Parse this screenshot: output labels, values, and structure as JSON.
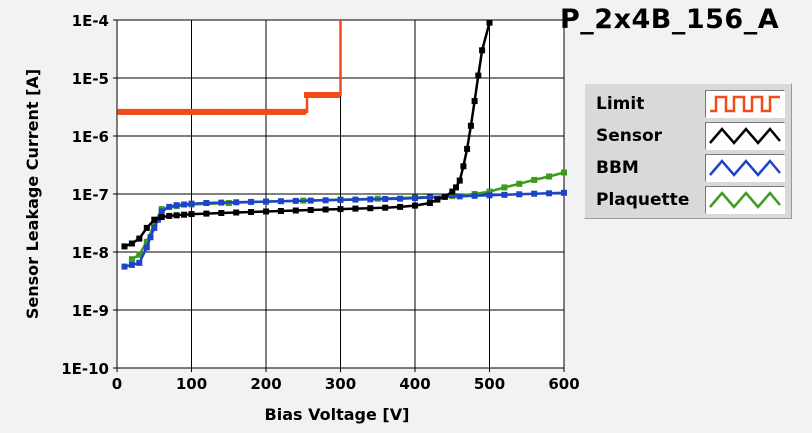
{
  "title": "P_2x4B_156_A",
  "legend": [
    {
      "label": "Limit",
      "color": "#f04c1a",
      "pattern": "square-wave"
    },
    {
      "label": "Sensor",
      "color": "#000000",
      "pattern": "triangle-wave"
    },
    {
      "label": "BBM",
      "color": "#1d44c8",
      "pattern": "triangle-wave"
    },
    {
      "label": "Plaquette",
      "color": "#3c9a1c",
      "pattern": "triangle-wave"
    }
  ],
  "chart_data": {
    "type": "line",
    "xlabel": "Bias Voltage [V]",
    "ylabel": "Sensor Leakage Current [A]",
    "xlim": [
      0,
      600
    ],
    "ylim": [
      1e-10,
      0.0001
    ],
    "yscale": "log",
    "grid": true,
    "legend_position": "right",
    "x_ticks": [
      0,
      100,
      200,
      300,
      400,
      500,
      600
    ],
    "x_tick_labels": [
      "0",
      "100",
      "200",
      "300",
      "400",
      "500",
      "600"
    ],
    "y_ticks": [
      1e-10,
      1e-09,
      1e-08,
      1e-07,
      1e-06,
      1e-05,
      0.0001
    ],
    "y_tick_labels": [
      "1E-10",
      "1E-9",
      "1E-8",
      "1E-7",
      "1E-6",
      "1E-5",
      "1E-4"
    ],
    "series": [
      {
        "name": "Limit",
        "color": "#f04c1a",
        "step": true,
        "x": [
          5,
          10,
          15,
          20,
          25,
          30,
          35,
          40,
          45,
          50,
          55,
          60,
          65,
          70,
          75,
          80,
          85,
          90,
          95,
          100,
          105,
          110,
          115,
          120,
          125,
          130,
          135,
          140,
          145,
          150,
          155,
          160,
          165,
          170,
          175,
          180,
          185,
          190,
          195,
          200,
          205,
          210,
          215,
          220,
          225,
          230,
          235,
          240,
          245,
          250,
          255,
          260,
          265,
          270,
          275,
          280,
          285,
          290,
          295,
          300
        ],
        "y": [
          2.6e-06,
          2.6e-06,
          2.6e-06,
          2.6e-06,
          2.6e-06,
          2.6e-06,
          2.6e-06,
          2.6e-06,
          2.6e-06,
          2.6e-06,
          2.6e-06,
          2.6e-06,
          2.6e-06,
          2.6e-06,
          2.6e-06,
          2.6e-06,
          2.6e-06,
          2.6e-06,
          2.6e-06,
          2.6e-06,
          2.6e-06,
          2.6e-06,
          2.6e-06,
          2.6e-06,
          2.6e-06,
          2.6e-06,
          2.6e-06,
          2.6e-06,
          2.6e-06,
          2.6e-06,
          2.6e-06,
          2.6e-06,
          2.6e-06,
          2.6e-06,
          2.6e-06,
          2.6e-06,
          2.6e-06,
          2.6e-06,
          2.6e-06,
          2.6e-06,
          2.6e-06,
          2.6e-06,
          2.6e-06,
          2.6e-06,
          2.6e-06,
          2.6e-06,
          2.6e-06,
          2.6e-06,
          2.6e-06,
          2.6e-06,
          5.1e-06,
          5.1e-06,
          5.1e-06,
          5.1e-06,
          5.1e-06,
          5.1e-06,
          5.1e-06,
          5.1e-06,
          5.1e-06,
          0.0001
        ]
      },
      {
        "name": "Sensor",
        "color": "#000000",
        "x": [
          10,
          20,
          30,
          40,
          50,
          60,
          70,
          80,
          90,
          100,
          120,
          140,
          160,
          180,
          200,
          220,
          240,
          260,
          280,
          300,
          320,
          340,
          360,
          380,
          400,
          420,
          430,
          440,
          450,
          455,
          460,
          465,
          470,
          475,
          480,
          485,
          490,
          500
        ],
        "y": [
          1.25e-08,
          1.4e-08,
          1.7e-08,
          2.6e-08,
          3.6e-08,
          4e-08,
          4.2e-08,
          4.3e-08,
          4.4e-08,
          4.5e-08,
          4.6e-08,
          4.7e-08,
          4.8e-08,
          4.9e-08,
          5e-08,
          5.1e-08,
          5.2e-08,
          5.3e-08,
          5.4e-08,
          5.5e-08,
          5.6e-08,
          5.7e-08,
          5.8e-08,
          6e-08,
          6.3e-08,
          7e-08,
          8e-08,
          9e-08,
          1.1e-07,
          1.3e-07,
          1.7e-07,
          3e-07,
          6e-07,
          1.5e-06,
          4e-06,
          1.1e-05,
          3e-05,
          9e-05
        ]
      },
      {
        "name": "BBM",
        "color": "#1d44c8",
        "x": [
          10,
          20,
          30,
          40,
          45,
          50,
          55,
          60,
          70,
          80,
          90,
          100,
          120,
          140,
          160,
          180,
          200,
          220,
          240,
          260,
          280,
          300,
          320,
          340,
          360,
          380,
          400,
          420,
          440,
          460,
          480,
          500,
          520,
          540,
          560,
          580,
          600
        ],
        "y": [
          5.6e-09,
          6e-09,
          6.5e-09,
          1.2e-08,
          1.8e-08,
          2.6e-08,
          3.6e-08,
          5e-08,
          6e-08,
          6.4e-08,
          6.6e-08,
          6.8e-08,
          7e-08,
          7.1e-08,
          7.2e-08,
          7.3e-08,
          7.4e-08,
          7.5e-08,
          7.6e-08,
          7.7e-08,
          7.8e-08,
          7.9e-08,
          8e-08,
          8.1e-08,
          8.2e-08,
          8.3e-08,
          8.5e-08,
          8.7e-08,
          8.9e-08,
          9.1e-08,
          9.3e-08,
          9.5e-08,
          9.7e-08,
          9.9e-08,
          1.01e-07,
          1.03e-07,
          1.05e-07
        ]
      },
      {
        "name": "Plaquette",
        "color": "#3c9a1c",
        "x": [
          20,
          30,
          40,
          50,
          60,
          80,
          100,
          150,
          200,
          250,
          300,
          350,
          400,
          450,
          480,
          500,
          520,
          540,
          560,
          580,
          600
        ],
        "y": [
          7.5e-09,
          9e-09,
          1.5e-08,
          3e-08,
          5.5e-08,
          6.2e-08,
          6.6e-08,
          7e-08,
          7.4e-08,
          7.7e-08,
          8e-08,
          8.3e-08,
          8.7e-08,
          9.2e-08,
          1e-07,
          1.1e-07,
          1.3e-07,
          1.5e-07,
          1.75e-07,
          2e-07,
          2.35e-07
        ]
      }
    ]
  }
}
